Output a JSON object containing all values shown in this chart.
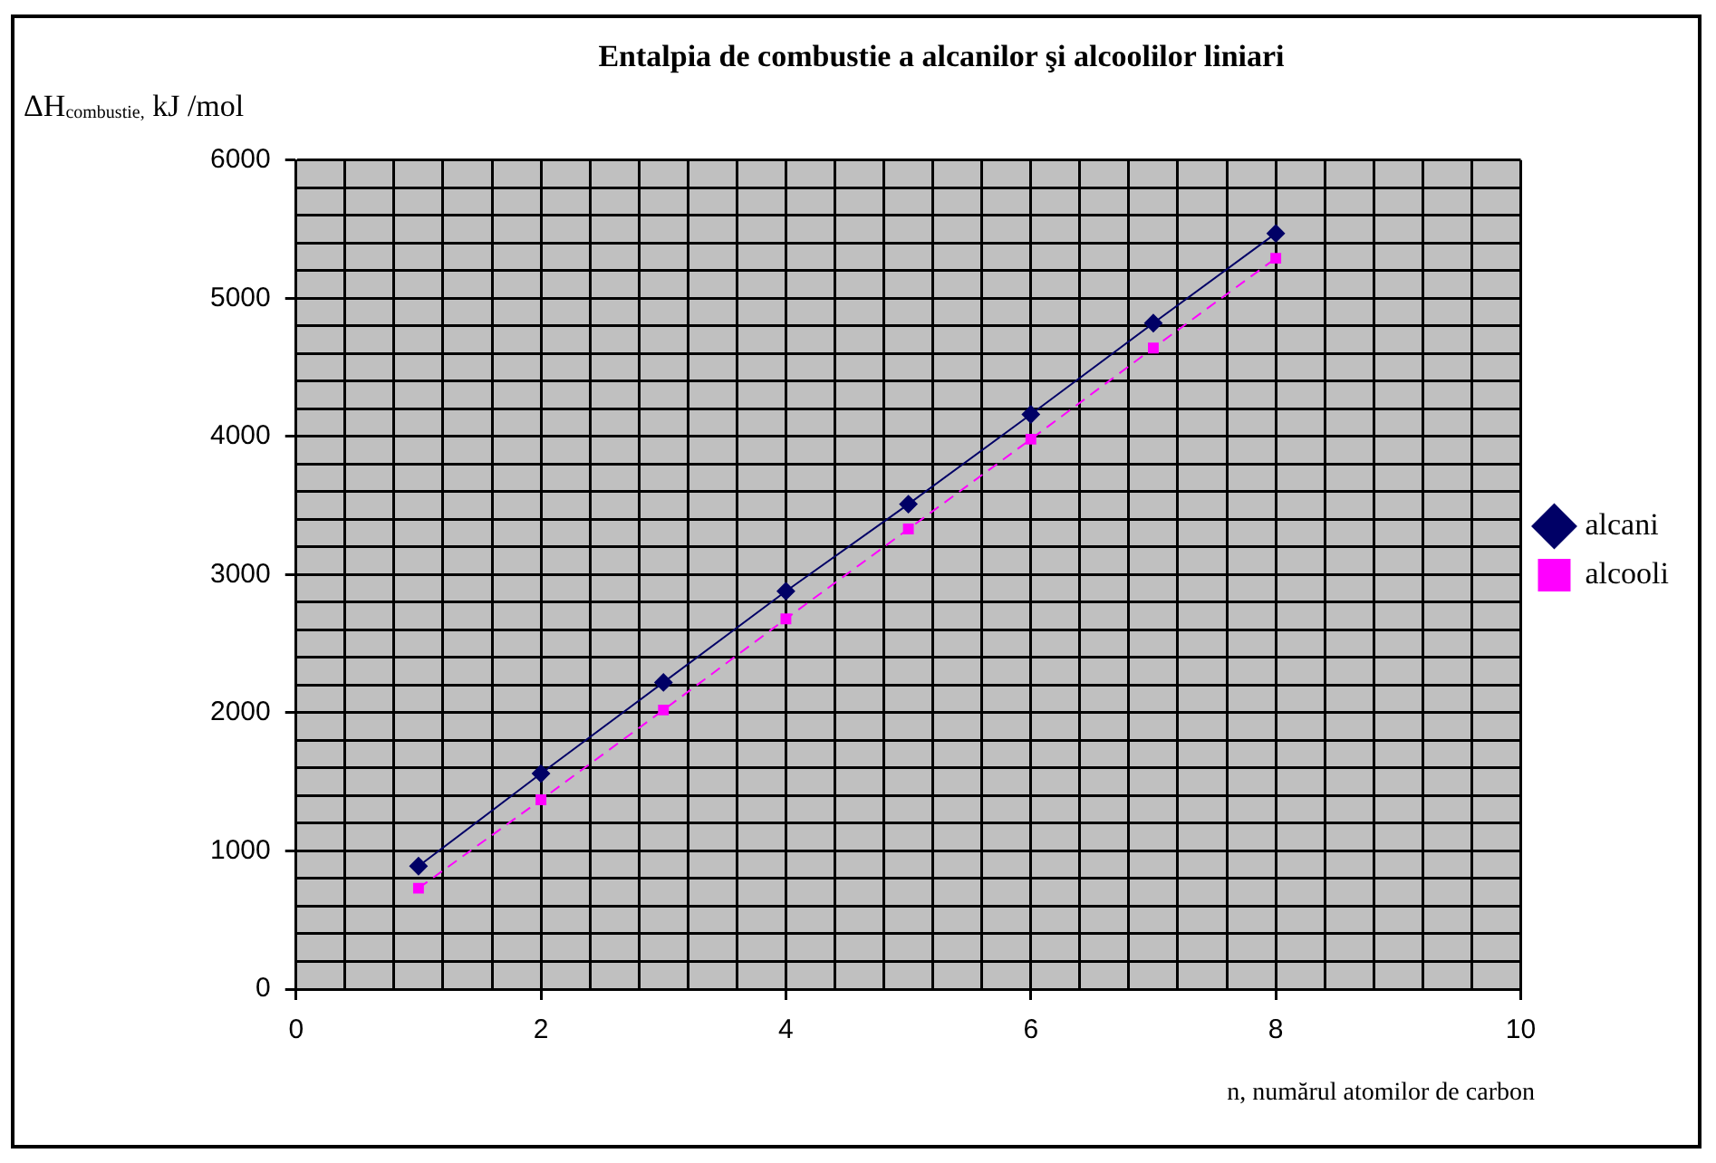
{
  "chart_data": {
    "type": "line",
    "title": "Entalpia de combustie a alcanilor şi alcoolilor liniari",
    "ylabel": "ΔH$_{combustie,}$ kJ /mol",
    "xlabel": "n, numărul atomilor de carbon",
    "x": [
      1,
      2,
      3,
      4,
      5,
      6,
      7,
      8
    ],
    "series": [
      {
        "name": "alcani",
        "color": "#000066",
        "marker": "diamond",
        "line_style": "solid",
        "values": [
          890,
          1560,
          2220,
          2880,
          3510,
          4160,
          4820,
          5470
        ]
      },
      {
        "name": "alcooli",
        "color": "#ff00ff",
        "marker": "square",
        "line_style": "dashed",
        "values": [
          730,
          1370,
          2020,
          2680,
          3330,
          3980,
          4640,
          5290
        ]
      }
    ],
    "xlim": [
      0,
      10
    ],
    "xticks": [
      0,
      {
        "value": 0.4,
        "label": null
      },
      {
        "value": 0.8,
        "label": null
      },
      {
        "value": 1.2,
        "label": null
      },
      {
        "value": 1.6,
        "label": null
      },
      2,
      {
        "value": 2.4,
        "label": null
      },
      {
        "value": 2.8,
        "label": null
      },
      {
        "value": 3.2,
        "label": null
      },
      {
        "value": 3.6,
        "label": null
      },
      4,
      {
        "value": 4.4,
        "label": null
      },
      {
        "value": 4.8,
        "label": null
      },
      {
        "value": 5.2,
        "label": null
      },
      {
        "value": 5.6,
        "label": null
      },
      6,
      {
        "value": 6.4,
        "label": null
      },
      {
        "value": 6.8,
        "label": null
      },
      {
        "value": 7.2,
        "label": null
      },
      {
        "value": 7.6,
        "label": null
      },
      8,
      {
        "value": 8.4,
        "label": null
      },
      {
        "value": 8.8,
        "label": null
      },
      {
        "value": 9.2,
        "label": null
      },
      {
        "value": 9.6,
        "label": null
      },
      10
    ],
    "ylim": [
      0,
      6000
    ],
    "yticks": [
      0,
      {
        "value": 200,
        "label": null
      },
      {
        "value": 400,
        "label": null
      },
      {
        "value": 600,
        "label": null
      },
      {
        "value": 800,
        "label": null
      },
      1000,
      {
        "value": 1200,
        "label": null
      },
      {
        "value": 1400,
        "label": null
      },
      {
        "value": 1600,
        "label": null
      },
      {
        "value": 1800,
        "label": null
      },
      2000,
      {
        "value": 2200,
        "label": null
      },
      {
        "value": 2400,
        "label": null
      },
      {
        "value": 2600,
        "label": null
      },
      {
        "value": 2800,
        "label": null
      },
      3000,
      {
        "value": 3200,
        "label": null
      },
      {
        "value": 3400,
        "label": null
      },
      {
        "value": 3600,
        "label": null
      },
      {
        "value": 3800,
        "label": null
      },
      4000,
      {
        "value": 4200,
        "label": null
      },
      {
        "value": 4400,
        "label": null
      },
      {
        "value": 4600,
        "label": null
      },
      {
        "value": 4800,
        "label": null
      },
      5000,
      {
        "value": 5200,
        "label": null
      },
      {
        "value": 5400,
        "label": null
      },
      {
        "value": 5600,
        "label": null
      },
      {
        "value": 5800,
        "label": null
      },
      6000
    ],
    "grid": true,
    "legend": "right"
  }
}
